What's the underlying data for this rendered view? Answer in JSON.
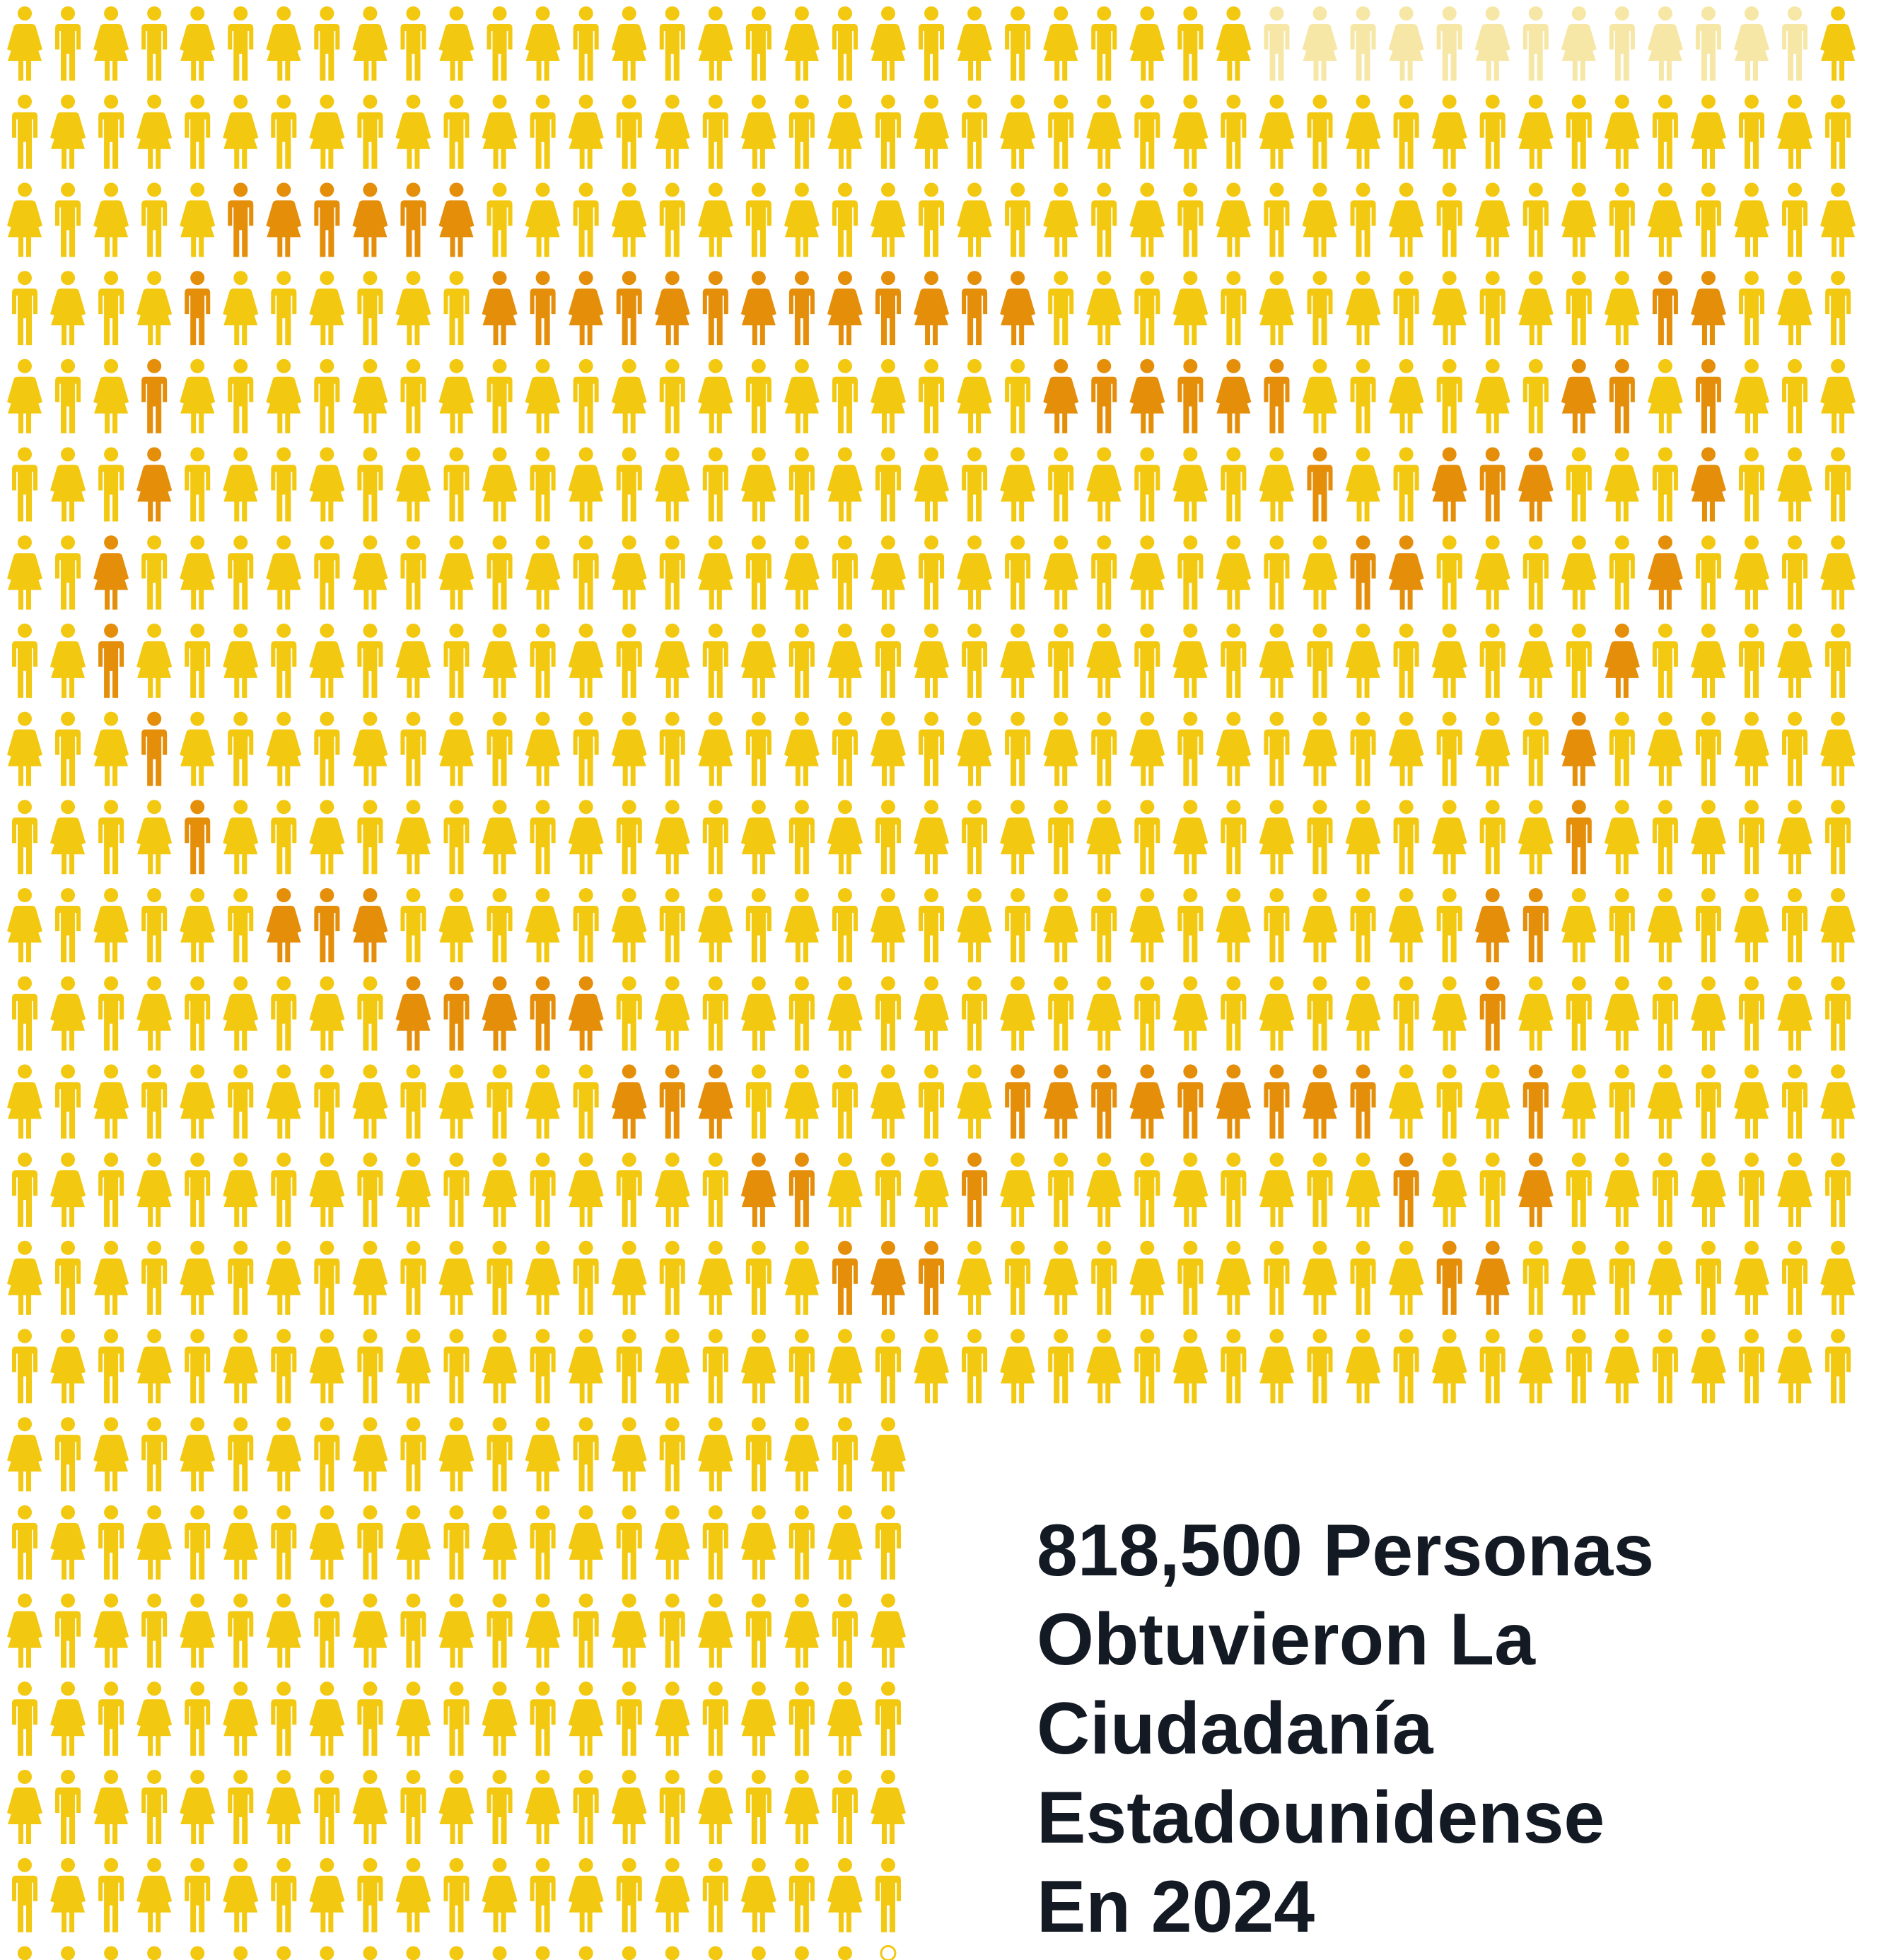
{
  "headline": {
    "line1": "818,500 Personas",
    "line2": "Obtuvieron La",
    "line3": "Ciudadanía",
    "line4": "Estadounidense",
    "line5": "En 2024"
  },
  "pictogram": {
    "icon_kinds": [
      "man-icon",
      "woman-icon"
    ],
    "colors": {
      "base": "#F2C811",
      "highlight": "#E48E0A",
      "faded": "#F6E7A6",
      "outline": "#F2C811"
    },
    "full_width_rows": 16,
    "full_width_columns": 43,
    "lower_rows": 7,
    "lower_columns": 21,
    "partial_last_icon": true
  }
}
